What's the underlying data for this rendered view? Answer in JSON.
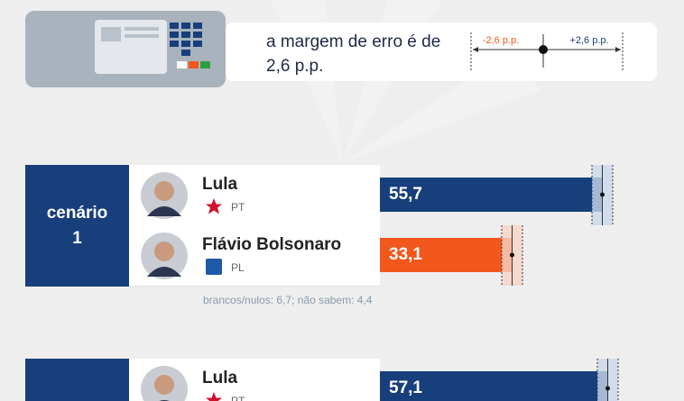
{
  "header": {
    "text": "a margem de erro é de 2,6 p.p.",
    "minus_label": "-2,6 p.p.",
    "plus_label": "+2,6 p.p."
  },
  "chart_data": [
    {
      "type": "bar",
      "title": "cenário 1",
      "categories": [
        "Lula",
        "Flávio Bolsonaro"
      ],
      "parties": [
        "PT",
        "PL"
      ],
      "values": [
        55.7,
        33.1
      ],
      "value_labels": [
        "55,7",
        "33,1"
      ],
      "error": 2.6,
      "colors": [
        "#173f7c",
        "#f2581c"
      ],
      "band_colors": [
        "#c9d8ea",
        "#f8d3c6"
      ],
      "note": "brancos/nulos: 6,7; não sabem: 4,4"
    },
    {
      "type": "bar",
      "categories": [
        "Lula"
      ],
      "parties": [
        "PT"
      ],
      "values": [
        57.1
      ],
      "value_labels": [
        "57,1"
      ],
      "error": 2.6,
      "colors": [
        "#173f7c"
      ],
      "band_colors": [
        "#c9d8ea"
      ]
    }
  ]
}
